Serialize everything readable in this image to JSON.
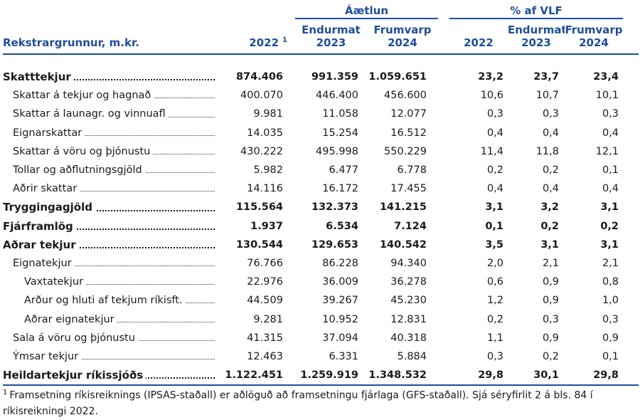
{
  "header": {
    "group1": "Áætlun",
    "group2": "% af VLF",
    "endurmat": "Endurmat",
    "frumvarp": "Frumvarp",
    "row_label": "Rekstrargrunnur, m.kr.",
    "y2022": "2022",
    "y2022_sup": "1",
    "y2023": "2023",
    "y2024": "2024"
  },
  "rows": [
    {
      "label": "Skatttekjur",
      "v": [
        "874.406",
        "991.359",
        "1.059.651"
      ],
      "p": [
        "23,2",
        "23,7",
        "23,4"
      ]
    },
    {
      "label": "Skattar á tekjur og hagnað",
      "v": [
        "400.070",
        "446.400",
        "456.600"
      ],
      "p": [
        "10,6",
        "10,7",
        "10,1"
      ]
    },
    {
      "label": "Skattar á launagr. og vinnuafl",
      "v": [
        "9.981",
        "11.058",
        "12.077"
      ],
      "p": [
        "0,3",
        "0,3",
        "0,3"
      ]
    },
    {
      "label": "Eignarskattar",
      "v": [
        "14.035",
        "15.254",
        "16.512"
      ],
      "p": [
        "0,4",
        "0,4",
        "0,4"
      ]
    },
    {
      "label": "Skattar á vöru og þjónustu",
      "v": [
        "430.222",
        "495.998",
        "550.229"
      ],
      "p": [
        "11,4",
        "11,8",
        "12,1"
      ]
    },
    {
      "label": "Tollar og aðflutningsgjöld",
      "v": [
        "5.982",
        "6.477",
        "6.778"
      ],
      "p": [
        "0,2",
        "0,2",
        "0,1"
      ]
    },
    {
      "label": "Aðrir skattar",
      "v": [
        "14.116",
        "16.172",
        "17.455"
      ],
      "p": [
        "0,4",
        "0,4",
        "0,4"
      ]
    },
    {
      "label": "Tryggingagjöld",
      "v": [
        "115.564",
        "132.373",
        "141.215"
      ],
      "p": [
        "3,1",
        "3,2",
        "3,1"
      ]
    },
    {
      "label": "Fjárframlög",
      "v": [
        "1.937",
        "6.534",
        "7.124"
      ],
      "p": [
        "0,1",
        "0,2",
        "0,2"
      ]
    },
    {
      "label": "Aðrar tekjur",
      "v": [
        "130.544",
        "129.653",
        "140.542"
      ],
      "p": [
        "3,5",
        "3,1",
        "3,1"
      ]
    },
    {
      "label": "Eignatekjur",
      "v": [
        "76.766",
        "86.228",
        "94.340"
      ],
      "p": [
        "2,0",
        "2,1",
        "2,1"
      ]
    },
    {
      "label": "Vaxtatekjur",
      "v": [
        "22.976",
        "36.009",
        "36.278"
      ],
      "p": [
        "0,6",
        "0,9",
        "0,8"
      ]
    },
    {
      "label": "Arður og hluti af tekjum ríkisft.",
      "v": [
        "44.509",
        "39.267",
        "45.230"
      ],
      "p": [
        "1,2",
        "0,9",
        "1,0"
      ]
    },
    {
      "label": "Aðrar eignatekjur",
      "v": [
        "9.281",
        "10.952",
        "12.831"
      ],
      "p": [
        "0,2",
        "0,3",
        "0,3"
      ]
    },
    {
      "label": "Sala á vöru og þjónustu",
      "v": [
        "41.315",
        "37.094",
        "40.318"
      ],
      "p": [
        "1,1",
        "0,9",
        "0,9"
      ]
    },
    {
      "label": "Ýmsar tekjur",
      "v": [
        "12.463",
        "6.331",
        "5.884"
      ],
      "p": [
        "0,3",
        "0,2",
        "0,1"
      ]
    },
    {
      "label": "Heildartekjur ríkissjóðs",
      "v": [
        "1.122.451",
        "1.259.919",
        "1.348.532"
      ],
      "p": [
        "29,8",
        "30,1",
        "29,8"
      ]
    }
  ],
  "footnote": {
    "mark": "1",
    "text": "Framsetning ríkisreiknings (IPSAS-staðall) er aðlöguð að framsetningu fjárlaga (GFS-staðall). Sjá séryfirlit 2 á bls. 84 í ríkisreikningi 2022."
  }
}
